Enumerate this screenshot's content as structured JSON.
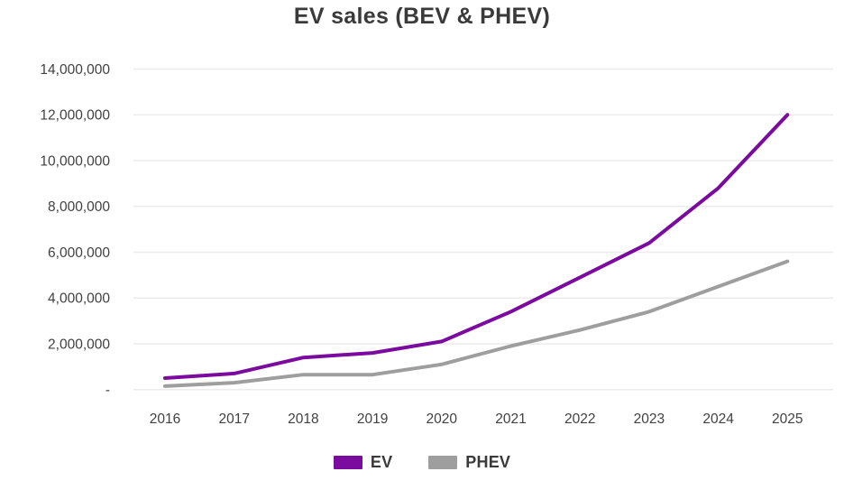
{
  "title": "EV sales (BEV & PHEV)",
  "colors": {
    "ev_line": "#7a0b9e",
    "phev_line": "#9e9e9e",
    "gridline": "#ececec",
    "axis_text": "#414141",
    "title_text": "#3a3a3a",
    "background": "#ffffff"
  },
  "chart_data": {
    "type": "line",
    "title": "EV sales (BEV & PHEV)",
    "x": [
      2016,
      2017,
      2018,
      2019,
      2020,
      2021,
      2022,
      2023,
      2024,
      2025
    ],
    "series": [
      {
        "name": "EV",
        "color": "#7a0b9e",
        "values": [
          500000,
          700000,
          1400000,
          1600000,
          2100000,
          3400000,
          4900000,
          6400000,
          8800000,
          12000000
        ]
      },
      {
        "name": "PHEV",
        "color": "#9e9e9e",
        "values": [
          150000,
          300000,
          650000,
          650000,
          1100000,
          1900000,
          2600000,
          3400000,
          4500000,
          5600000
        ]
      }
    ],
    "xlabel": "",
    "ylabel": "",
    "ylim": [
      0,
      14000000
    ],
    "ytick_step": 2000000,
    "ytick_labels": [
      "-",
      "2,000,000",
      "4,000,000",
      "6,000,000",
      "8,000,000",
      "10,000,000",
      "12,000,000",
      "14,000,000"
    ],
    "grid": "horizontal",
    "legend_position": "bottom"
  },
  "legend": {
    "items": [
      {
        "label": "EV",
        "color": "#7a0b9e"
      },
      {
        "label": "PHEV",
        "color": "#9e9e9e"
      }
    ]
  }
}
